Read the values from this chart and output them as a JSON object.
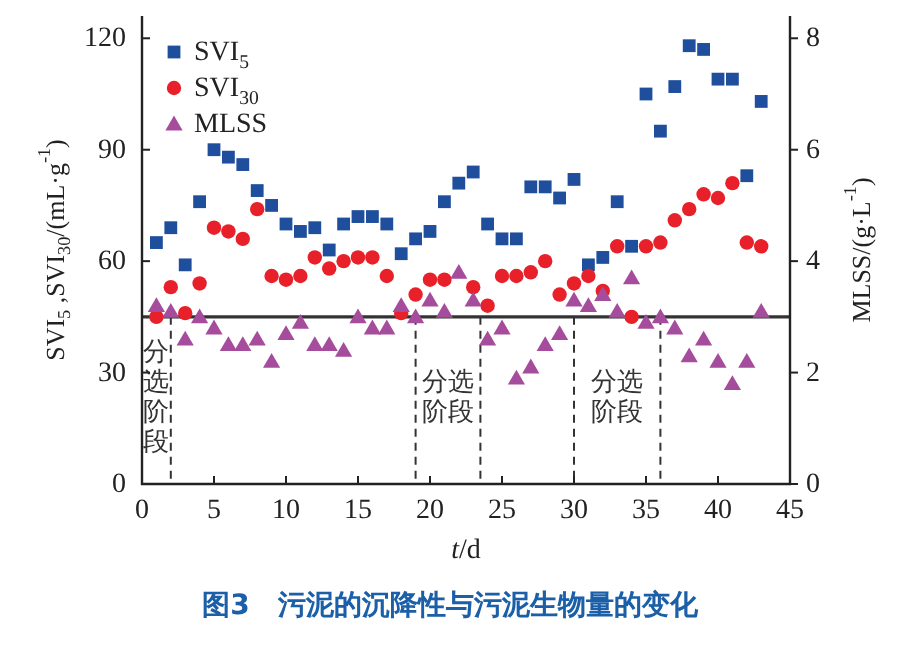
{
  "chart_data": {
    "type": "scatter",
    "title": "图3　污泥的沉降性与污泥生物量的变化",
    "xlabel": "*t*/d",
    "ylabel": "SVI$_{5}$ ,SVI$_{30}$/(mL·g$^{-1}$)",
    "y2label": "MLSS/(g·L$^{-1}$)",
    "x": [
      1,
      2,
      3,
      4,
      5,
      6,
      7,
      8,
      9,
      10,
      11,
      12,
      13,
      14,
      15,
      16,
      17,
      18,
      19,
      20,
      21,
      22,
      23,
      24,
      25,
      26,
      27,
      28,
      29,
      30,
      31,
      32,
      33,
      34,
      35,
      36,
      37,
      38,
      39,
      40,
      41,
      42,
      43
    ],
    "series": [
      {
        "name": "SVI$_{5}$",
        "color": "#1f4e9c",
        "marker": "square",
        "values": [
          65,
          69,
          59,
          76,
          90,
          88,
          86,
          79,
          75,
          70,
          68,
          69,
          63,
          70,
          72,
          72,
          70,
          62,
          66,
          68,
          76,
          81,
          84,
          70,
          66,
          66,
          80,
          80,
          77,
          82,
          59,
          61,
          76,
          64,
          105,
          95,
          107,
          118,
          117,
          109,
          109,
          83,
          103
        ]
      },
      {
        "name": "SVI$_{30}$",
        "color": "#e8202a",
        "marker": "circle",
        "values": [
          45,
          53,
          46,
          54,
          69,
          68,
          66,
          74,
          56,
          55,
          56,
          61,
          58,
          60,
          61,
          61,
          56,
          46,
          51,
          55,
          55,
          null,
          53,
          48,
          56,
          56,
          57,
          60,
          51,
          54,
          56,
          52,
          64,
          45,
          64,
          65,
          71,
          74,
          78,
          77,
          81,
          65,
          64
        ]
      },
      {
        "name": "MLSS",
        "color": "#a54d9c",
        "marker": "triangle",
        "axis": "y2",
        "values": [
          3.2,
          3.1,
          2.6,
          3.0,
          2.8,
          2.5,
          2.5,
          2.6,
          2.2,
          2.7,
          2.9,
          2.5,
          2.5,
          2.4,
          3.0,
          2.8,
          2.8,
          3.2,
          3.0,
          3.3,
          3.1,
          3.8,
          3.3,
          2.6,
          2.8,
          1.9,
          2.1,
          2.5,
          2.7,
          3.3,
          3.2,
          3.4,
          3.1,
          3.7,
          2.9,
          3.0,
          2.8,
          2.3,
          2.6,
          2.2,
          1.8,
          2.2,
          3.1
        ]
      }
    ],
    "xlim": [
      0,
      45
    ],
    "xticks": [
      0,
      5,
      10,
      15,
      20,
      25,
      30,
      35,
      40,
      45
    ],
    "ylim": [
      0,
      126
    ],
    "yticks": [
      0,
      30,
      60,
      90,
      120
    ],
    "y2lim": [
      0,
      8.4
    ],
    "y2ticks": [
      0,
      2,
      4,
      6,
      8
    ],
    "ref_lines": [
      {
        "axis": "y2",
        "value": 3,
        "color": "#333333",
        "line_style": "solid"
      },
      {
        "axis": "x",
        "value": 2,
        "color": "#333333",
        "line_style": "dashed"
      },
      {
        "axis": "x",
        "value": 19,
        "color": "#333333",
        "line_style": "dashed"
      },
      {
        "axis": "x",
        "value": 23.5,
        "color": "#333333",
        "line_style": "dashed"
      },
      {
        "axis": "x",
        "value": 30,
        "color": "#333333",
        "line_style": "dashed"
      },
      {
        "axis": "x",
        "value": 36,
        "color": "#333333",
        "line_style": "dashed"
      }
    ],
    "annotations": [
      "分选阶段",
      "分选阶段",
      "分选阶段"
    ],
    "legend": "top left",
    "grid": false
  }
}
